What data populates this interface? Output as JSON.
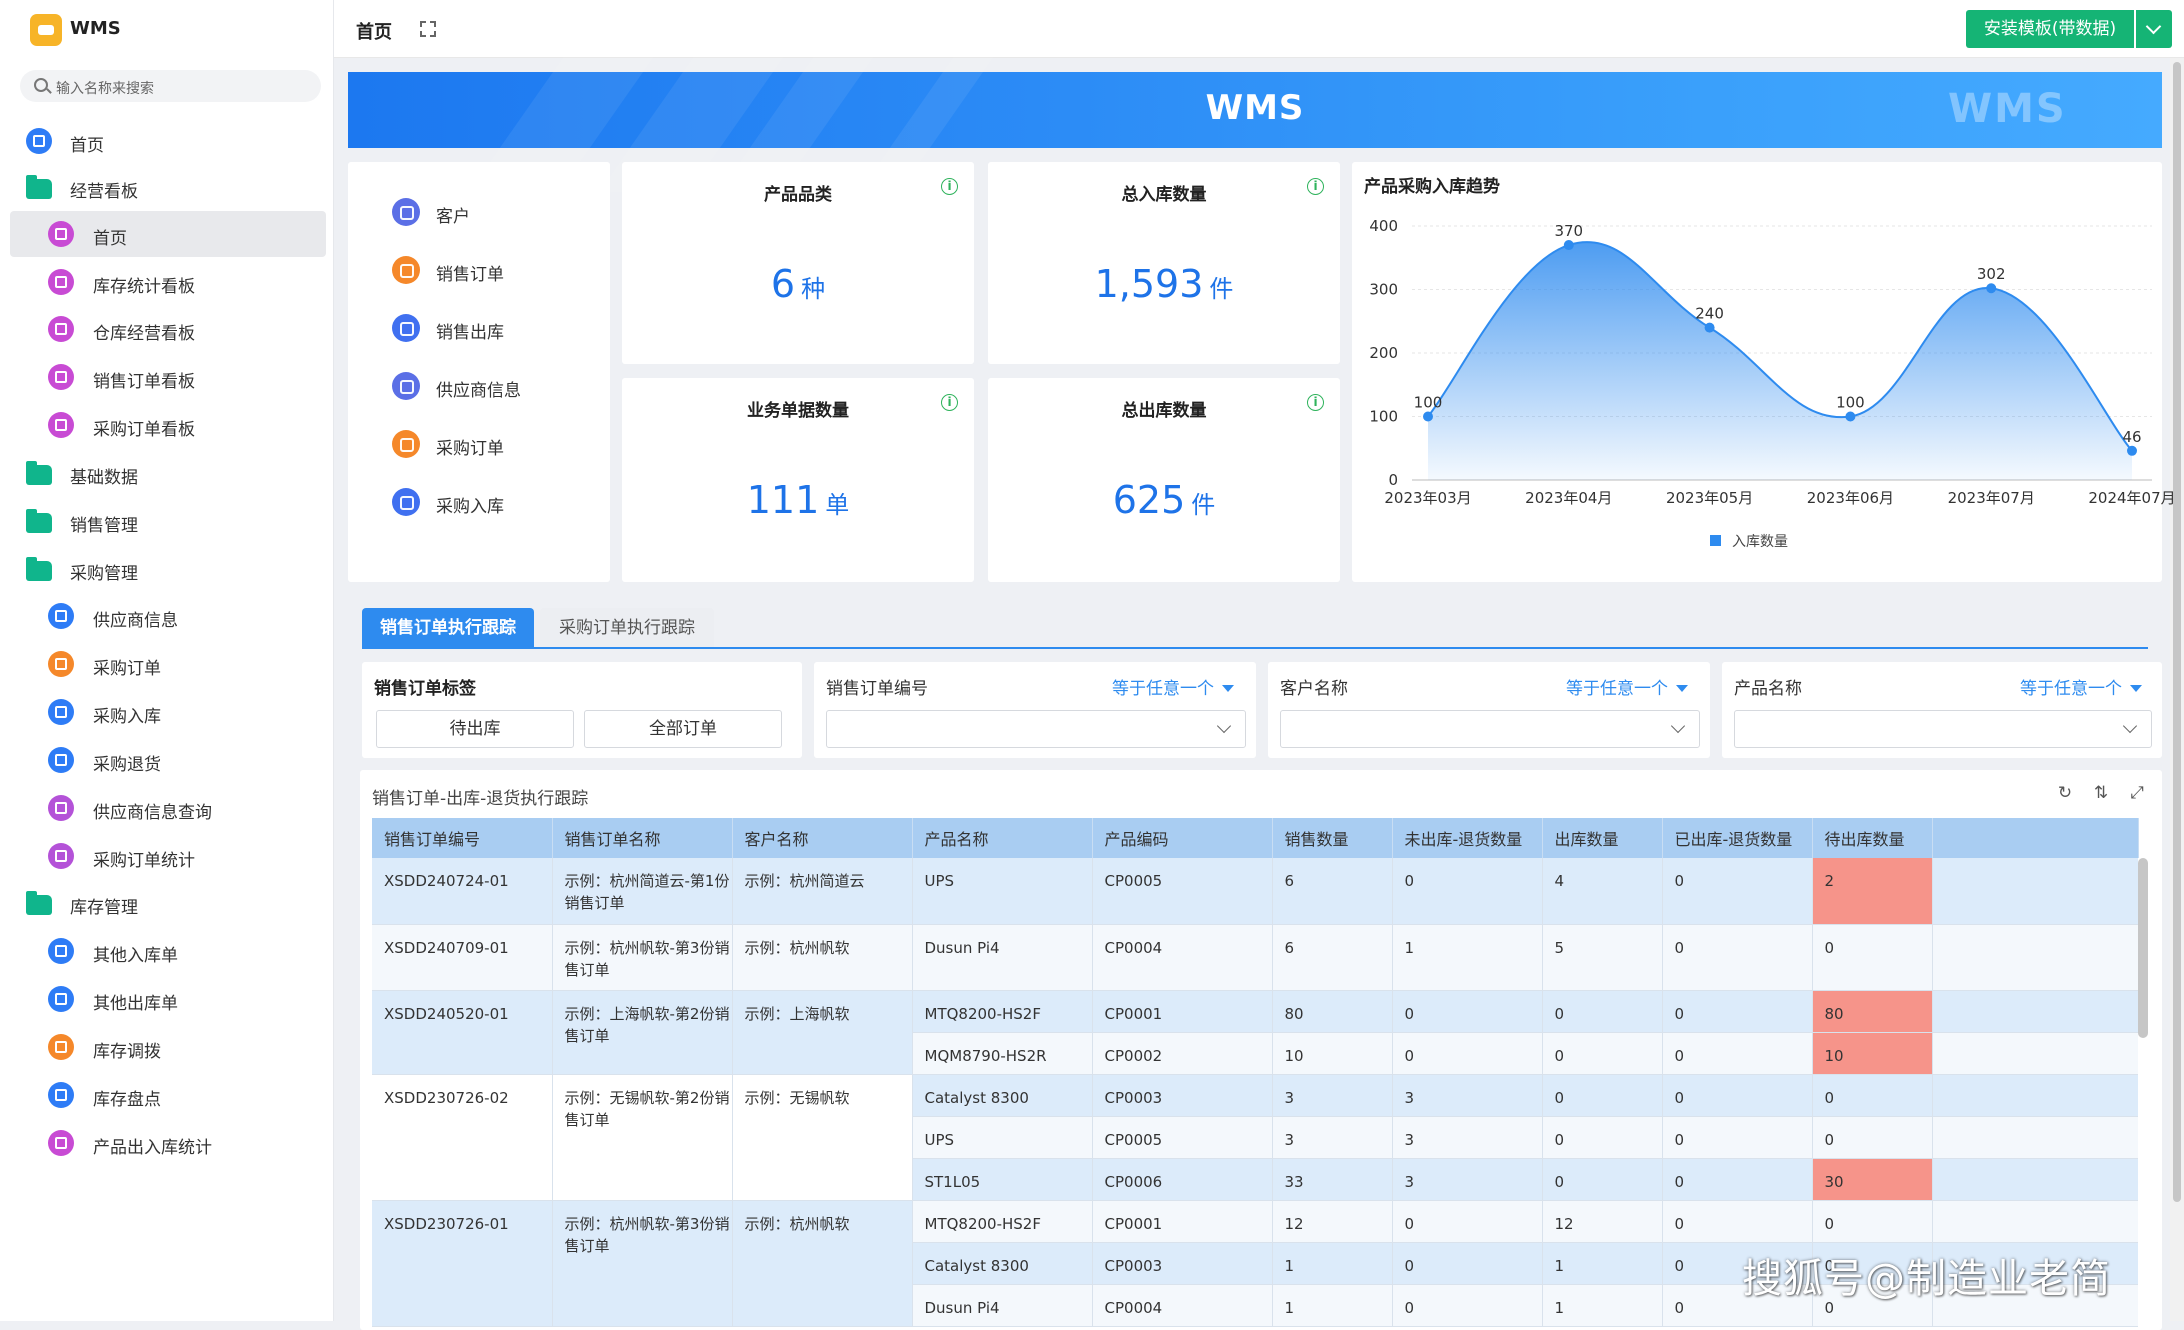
{
  "app": {
    "name": "WMS"
  },
  "sidebar": {
    "search_placeholder": "输入名称来搜索",
    "items": [
      {
        "label": "首页",
        "icon": "home-icon",
        "color": "#2e7cf6"
      },
      {
        "label": "经营看板",
        "icon": "folder-icon",
        "color": "#10b58c"
      },
      {
        "label": "首页",
        "icon": "dashboard-icon",
        "color": "#c84bd4",
        "active": true
      },
      {
        "label": "库存统计看板",
        "icon": "dashboard-icon",
        "color": "#c84bd4"
      },
      {
        "label": "仓库经营看板",
        "icon": "dashboard-icon",
        "color": "#c84bd4"
      },
      {
        "label": "销售订单看板",
        "icon": "dashboard-icon",
        "color": "#c84bd4"
      },
      {
        "label": "采购订单看板",
        "icon": "dashboard-icon",
        "color": "#c84bd4"
      },
      {
        "label": "基础数据",
        "icon": "folder-icon",
        "color": "#10b58c"
      },
      {
        "label": "销售管理",
        "icon": "folder-icon",
        "color": "#10b58c"
      },
      {
        "label": "采购管理",
        "icon": "folder-icon",
        "color": "#10b58c"
      },
      {
        "label": "供应商信息",
        "icon": "user-icon",
        "color": "#2e7cf6"
      },
      {
        "label": "采购订单",
        "icon": "order-icon",
        "color": "#f5882a"
      },
      {
        "label": "采购入库",
        "icon": "doc-icon",
        "color": "#2e7cf6"
      },
      {
        "label": "采购退货",
        "icon": "doc-icon",
        "color": "#2e7cf6"
      },
      {
        "label": "供应商信息查询",
        "icon": "bar-chart-icon",
        "color": "#b452d8"
      },
      {
        "label": "采购订单统计",
        "icon": "bar-chart-icon",
        "color": "#b452d8"
      },
      {
        "label": "库存管理",
        "icon": "folder-icon",
        "color": "#10b58c"
      },
      {
        "label": "其他入库单",
        "icon": "doc-icon",
        "color": "#2e7cf6"
      },
      {
        "label": "其他出库单",
        "icon": "doc-icon",
        "color": "#2e7cf6"
      },
      {
        "label": "库存调拨",
        "icon": "transfer-icon",
        "color": "#f5882a"
      },
      {
        "label": "库存盘点",
        "icon": "doc-icon",
        "color": "#2e7cf6"
      },
      {
        "label": "产品出入库统计",
        "icon": "dashboard-icon",
        "color": "#c84bd4"
      }
    ]
  },
  "header": {
    "title": "首页",
    "install_button": "安装模板(带数据)"
  },
  "banner": {
    "title": "WMS",
    "watermark": "WMS"
  },
  "quick_links": [
    {
      "label": "客户",
      "icon": "customer-icon",
      "color": "#5b6fe6"
    },
    {
      "label": "销售订单",
      "icon": "sales-order-icon",
      "color": "#f5882a"
    },
    {
      "label": "销售出库",
      "icon": "send-icon",
      "color": "#4070f0"
    },
    {
      "label": "供应商信息",
      "icon": "supplier-icon",
      "color": "#5b6fe6"
    },
    {
      "label": "采购订单",
      "icon": "cart-icon",
      "color": "#f5882a"
    },
    {
      "label": "采购入库",
      "icon": "inbound-icon",
      "color": "#4070f0"
    }
  ],
  "stats": {
    "product_categories": {
      "title": "产品品类",
      "value": "6",
      "unit": "种"
    },
    "total_inbound": {
      "title": "总入库数量",
      "value": "1,593",
      "unit": "件"
    },
    "business_docs": {
      "title": "业务单据数量",
      "value": "111",
      "unit": "单"
    },
    "total_outbound": {
      "title": "总出库数量",
      "value": "625",
      "unit": "件"
    }
  },
  "chart_data": {
    "type": "area",
    "title": "产品采购入库趋势",
    "categories": [
      "2023年03月",
      "2023年04月",
      "2023年05月",
      "2023年06月",
      "2023年07月",
      "2024年07月"
    ],
    "series": [
      {
        "name": "入库数量",
        "values": [
          100,
          370,
          240,
          100,
          302,
          46
        ]
      }
    ],
    "ylim": [
      0,
      400
    ],
    "yticks": [
      "400",
      "300",
      "200",
      "100",
      "0"
    ],
    "grid": true,
    "legend": "bottom",
    "color": "#2e8bef"
  },
  "tabs": [
    {
      "label": "销售订单执行跟踪",
      "active": true
    },
    {
      "label": "采购订单执行跟踪",
      "active": false
    }
  ],
  "filters": {
    "tag": {
      "label": "销售订单标签",
      "options": [
        "待出库",
        "全部订单"
      ]
    },
    "order_no": {
      "label": "销售订单编号",
      "operator": "等于任意一个"
    },
    "customer": {
      "label": "客户名称",
      "operator": "等于任意一个"
    },
    "product": {
      "label": "产品名称",
      "operator": "等于任意一个"
    }
  },
  "table": {
    "title": "销售订单-出库-退货执行跟踪",
    "columns": [
      "销售订单编号",
      "销售订单名称",
      "客户名称",
      "产品名称",
      "产品编码",
      "销售数量",
      "未出库-退货数量",
      "出库数量",
      "已出库-退货数量",
      "待出库数量"
    ],
    "orders": [
      {
        "no": "XSDD240724-01",
        "name": "示例：杭州简道云-第1份销售订单",
        "customer": "示例：杭州简道云",
        "items": [
          {
            "product": "UPS",
            "code": "CP0005",
            "qty": "6",
            "not_out_return": "0",
            "out_qty": "4",
            "out_return": "0",
            "pending": "2",
            "highlight": true
          }
        ]
      },
      {
        "no": "XSDD240709-01",
        "name": "示例：杭州帆软-第3份销售订单",
        "customer": "示例：杭州帆软",
        "items": [
          {
            "product": "Dusun Pi4",
            "code": "CP0004",
            "qty": "6",
            "not_out_return": "1",
            "out_qty": "5",
            "out_return": "0",
            "pending": "0",
            "highlight": false
          }
        ]
      },
      {
        "no": "XSDD240520-01",
        "name": "示例：上海帆软-第2份销售订单",
        "customer": "示例：上海帆软",
        "items": [
          {
            "product": "MTQ8200-HS2F",
            "code": "CP0001",
            "qty": "80",
            "not_out_return": "0",
            "out_qty": "0",
            "out_return": "0",
            "pending": "80",
            "highlight": true
          },
          {
            "product": "MQM8790-HS2R",
            "code": "CP0002",
            "qty": "10",
            "not_out_return": "0",
            "out_qty": "0",
            "out_return": "0",
            "pending": "10",
            "highlight": true
          }
        ]
      },
      {
        "no": "XSDD230726-02",
        "name": "示例：无锡帆软-第2份销售订单",
        "customer": "示例：无锡帆软",
        "items": [
          {
            "product": "Catalyst 8300",
            "code": "CP0003",
            "qty": "3",
            "not_out_return": "3",
            "out_qty": "0",
            "out_return": "0",
            "pending": "0",
            "highlight": false
          },
          {
            "product": "UPS",
            "code": "CP0005",
            "qty": "3",
            "not_out_return": "3",
            "out_qty": "0",
            "out_return": "0",
            "pending": "0",
            "highlight": false
          },
          {
            "product": "ST1L05",
            "code": "CP0006",
            "qty": "33",
            "not_out_return": "3",
            "out_qty": "0",
            "out_return": "0",
            "pending": "30",
            "highlight": true
          }
        ]
      },
      {
        "no": "XSDD230726-01",
        "name": "示例：杭州帆软-第3份销售订单",
        "customer": "示例：杭州帆软",
        "items": [
          {
            "product": "MTQ8200-HS2F",
            "code": "CP0001",
            "qty": "12",
            "not_out_return": "0",
            "out_qty": "12",
            "out_return": "0",
            "pending": "0",
            "highlight": false
          },
          {
            "product": "Catalyst 8300",
            "code": "CP0003",
            "qty": "1",
            "not_out_return": "0",
            "out_qty": "1",
            "out_return": "0",
            "pending": "0",
            "highlight": false
          },
          {
            "product": "Dusun Pi4",
            "code": "CP0004",
            "qty": "1",
            "not_out_return": "0",
            "out_qty": "1",
            "out_return": "0",
            "pending": "0",
            "highlight": false
          }
        ]
      }
    ]
  },
  "watermark": "搜狐号@制造业老简"
}
